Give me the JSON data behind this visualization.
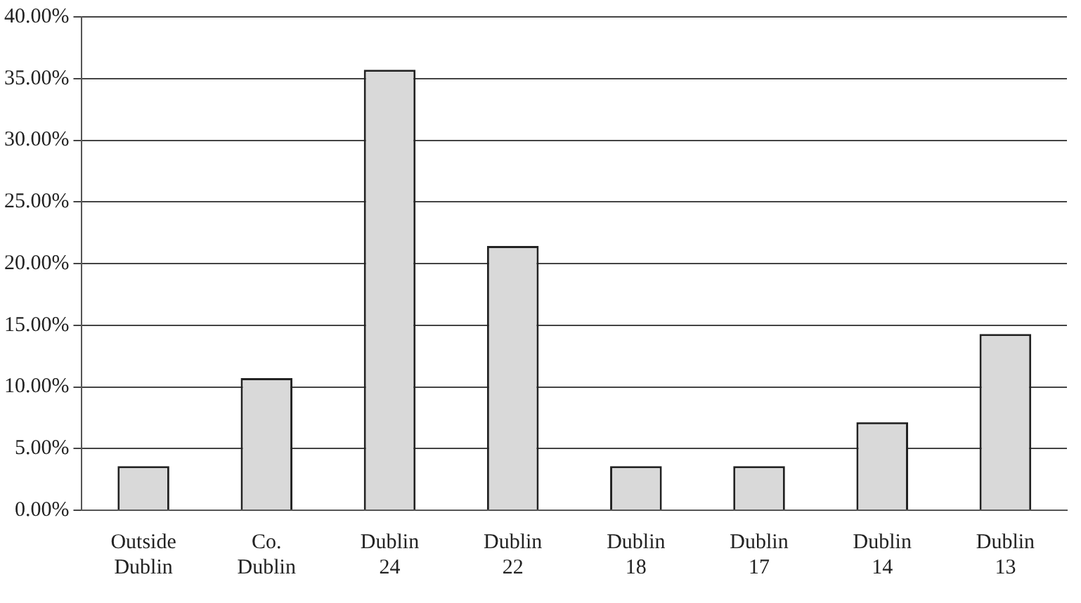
{
  "chart_data": {
    "type": "bar",
    "categories": [
      "Outside Dublin",
      "Co. Dublin",
      "Dublin 24",
      "Dublin 22",
      "Dublin 18",
      "Dublin 17",
      "Dublin 14",
      "Dublin 13"
    ],
    "values": [
      3.57,
      10.71,
      35.71,
      21.43,
      3.57,
      3.57,
      7.14,
      14.29
    ],
    "color": "#d9d9d9",
    "ylim": [
      0,
      40
    ],
    "yticks": [
      {
        "value": 0,
        "label": "0.00%"
      },
      {
        "value": 5,
        "label": "5.00%"
      },
      {
        "value": 10,
        "label": "10.00%"
      },
      {
        "value": 15,
        "label": "15.00%"
      },
      {
        "value": 20,
        "label": "20.00%"
      },
      {
        "value": 25,
        "label": "25.00%"
      },
      {
        "value": 30,
        "label": "30.00%"
      },
      {
        "value": 35,
        "label": "35.00%"
      },
      {
        "value": 40,
        "label": "40.00%"
      }
    ],
    "grid": "y"
  }
}
